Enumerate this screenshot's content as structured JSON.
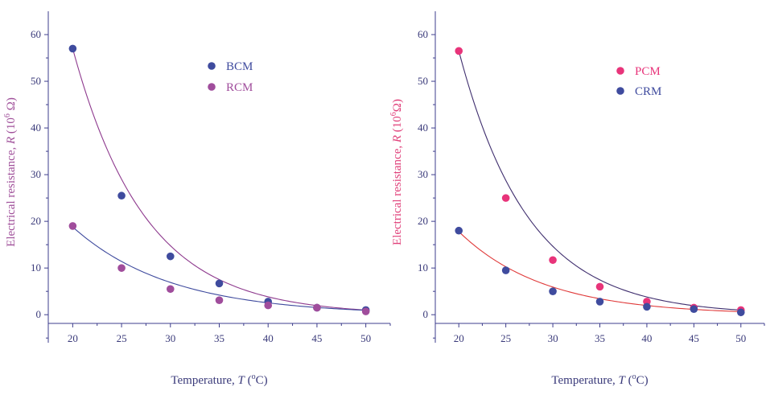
{
  "chart_data": [
    {
      "type": "scatter",
      "title": "",
      "xlabel": "Temperature, T (°C)",
      "ylabel": "Electrical resistance, R (10⁶ Ω)",
      "xlabel_parts": {
        "text": "Temperature, ",
        "var": "T",
        "unit_open": " (",
        "sup": "o",
        "unit_close": "C)"
      },
      "ylabel_parts": {
        "text": "Electrical resistance, ",
        "var": "R",
        "unit_open": " (10",
        "sup": "6",
        "unit_close": " Ω)"
      },
      "ylabel_color": "#a0509a",
      "xlim": [
        17.5,
        52.5
      ],
      "ylim": [
        -6,
        65
      ],
      "xticks": [
        20,
        25,
        30,
        35,
        40,
        45,
        50
      ],
      "yticks": [
        0,
        10,
        20,
        30,
        40,
        50,
        60
      ],
      "grid": false,
      "legend_position": "top-center",
      "series": [
        {
          "name": "BCM",
          "color": "#3f4b9e",
          "line_color": "#8e3a8e",
          "x": [
            20,
            25,
            30,
            35,
            40,
            45,
            50
          ],
          "y": [
            57.0,
            25.5,
            12.5,
            6.7,
            2.8,
            1.5,
            1.0
          ],
          "fit": {
            "a": 57.0,
            "k": 0.135
          }
        },
        {
          "name": "RCM",
          "color": "#a04d9c",
          "line_color": "#3f4b9e",
          "x": [
            20,
            25,
            30,
            35,
            40,
            45,
            50
          ],
          "y": [
            19.0,
            10.0,
            5.5,
            3.1,
            2.0,
            1.5,
            0.7
          ],
          "fit": {
            "a": 18.8,
            "k": 0.1
          }
        }
      ]
    },
    {
      "type": "scatter",
      "title": "",
      "xlabel": "Temperature, T (°C)",
      "ylabel": "Electrical resistance, R (10⁶ Ω)",
      "xlabel_parts": {
        "text": "Temperature, ",
        "var": "T",
        "unit_open": " (",
        "sup": "o",
        "unit_close": "C)"
      },
      "ylabel_parts": {
        "text": "Electrical resistance, ",
        "var": "R",
        "unit_open": " (10",
        "sup": "6",
        "unit_close": "Ω)"
      },
      "ylabel_color": "#e0407a",
      "xlim": [
        17.5,
        52.5
      ],
      "ylim": [
        -6,
        65
      ],
      "xticks": [
        20,
        25,
        30,
        35,
        40,
        45,
        50
      ],
      "yticks": [
        0,
        10,
        20,
        30,
        40,
        50,
        60
      ],
      "grid": false,
      "legend_position": "top-center",
      "series": [
        {
          "name": "PCM",
          "color": "#e8347a",
          "line_color": "#3f2e6e",
          "x": [
            20,
            25,
            30,
            35,
            40,
            45,
            50
          ],
          "y": [
            56.5,
            25.0,
            11.7,
            6.0,
            2.8,
            1.5,
            1.0
          ],
          "fit": {
            "a": 56.5,
            "k": 0.135
          }
        },
        {
          "name": "CRM",
          "color": "#3f4b9e",
          "line_color": "#e03a3a",
          "x": [
            20,
            25,
            30,
            35,
            40,
            45,
            50
          ],
          "y": [
            18.0,
            9.5,
            5.0,
            2.8,
            1.7,
            1.2,
            0.5
          ],
          "fit": {
            "a": 17.8,
            "k": 0.11
          }
        }
      ]
    }
  ]
}
